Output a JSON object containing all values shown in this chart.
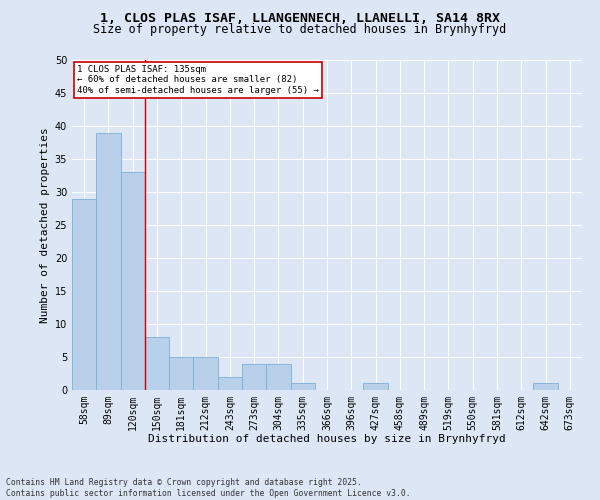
{
  "title_line1": "1, CLOS PLAS ISAF, LLANGENNECH, LLANELLI, SA14 8RX",
  "title_line2": "Size of property relative to detached houses in Brynhyfryd",
  "xlabel": "Distribution of detached houses by size in Brynhyfryd",
  "ylabel": "Number of detached properties",
  "categories": [
    "58sqm",
    "89sqm",
    "120sqm",
    "150sqm",
    "181sqm",
    "212sqm",
    "243sqm",
    "273sqm",
    "304sqm",
    "335sqm",
    "366sqm",
    "396sqm",
    "427sqm",
    "458sqm",
    "489sqm",
    "519sqm",
    "550sqm",
    "581sqm",
    "612sqm",
    "642sqm",
    "673sqm"
  ],
  "values": [
    29,
    39,
    33,
    8,
    5,
    5,
    2,
    4,
    4,
    1,
    0,
    0,
    1,
    0,
    0,
    0,
    0,
    0,
    0,
    1,
    0
  ],
  "bar_color": "#b8d0ea",
  "bar_edge_color": "#7aafd4",
  "background_color": "#dce6f5",
  "fig_background": "#dce6f5",
  "grid_color": "#ffffff",
  "vline_x": 2.5,
  "vline_color": "#cc0000",
  "annotation_line1": "1 CLOS PLAS ISAF: 135sqm",
  "annotation_line2": "← 60% of detached houses are smaller (82)",
  "annotation_line3": "40% of semi-detached houses are larger (55) →",
  "annotation_box_color": "#ffffff",
  "annotation_box_edge": "#cc0000",
  "footer_line1": "Contains HM Land Registry data © Crown copyright and database right 2025.",
  "footer_line2": "Contains public sector information licensed under the Open Government Licence v3.0.",
  "ylim": [
    0,
    50
  ],
  "yticks": [
    0,
    5,
    10,
    15,
    20,
    25,
    30,
    35,
    40,
    45,
    50
  ],
  "title_fontsize": 9.5,
  "subtitle_fontsize": 8.5,
  "axis_fontsize": 8,
  "tick_fontsize": 7,
  "annot_fontsize": 6.5,
  "footer_fontsize": 5.8
}
